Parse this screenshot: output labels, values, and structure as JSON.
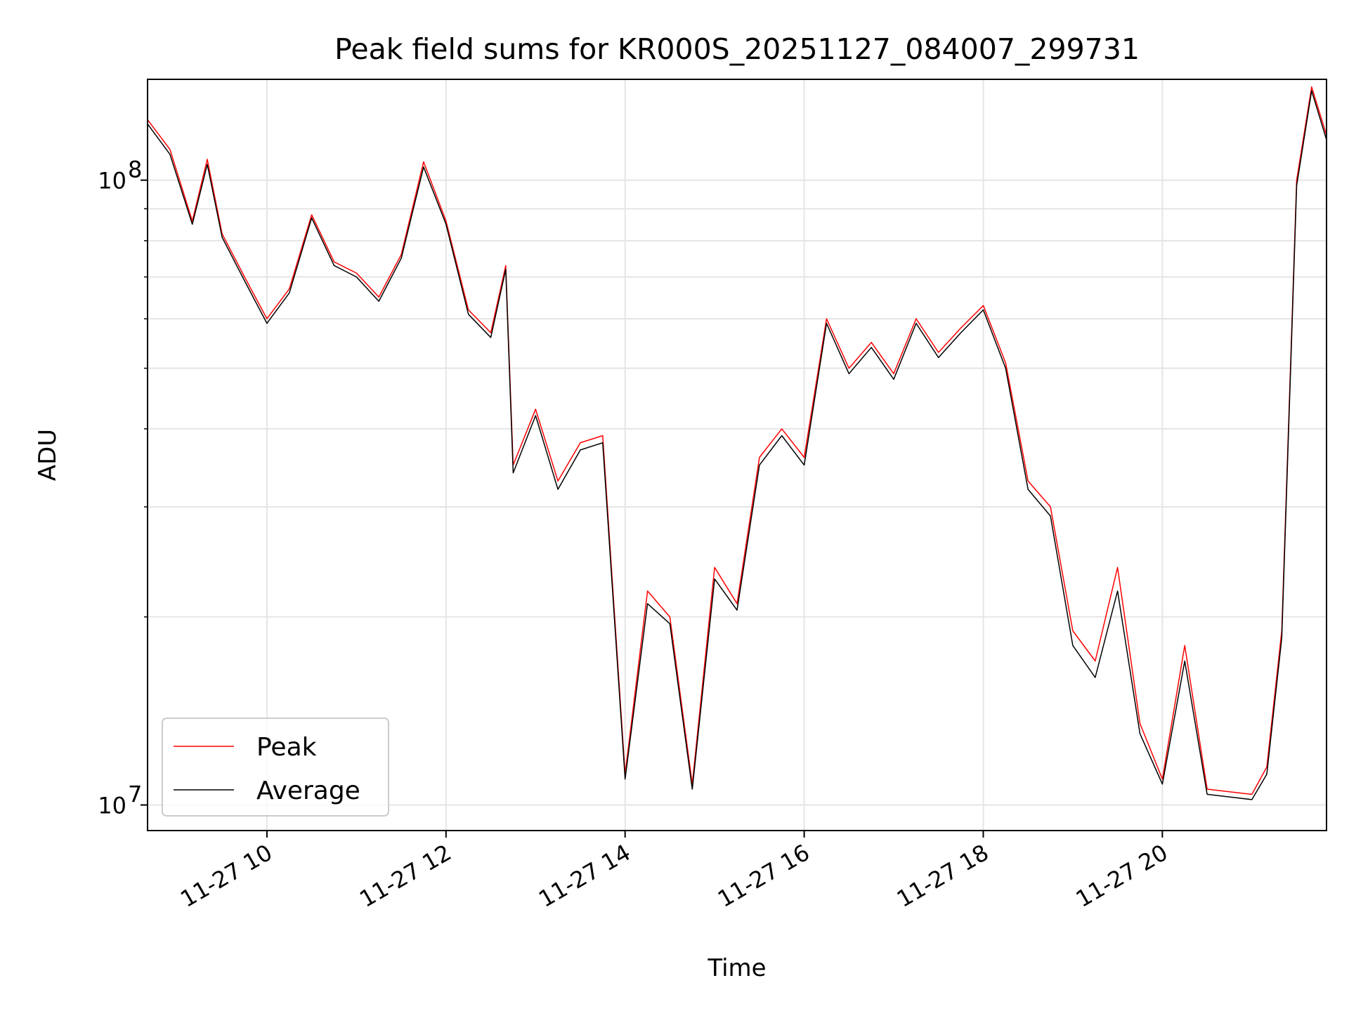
{
  "chart_data": {
    "type": "line",
    "title": "Peak field sums for KR000S_20251127_084007_299731",
    "xlabel": "Time",
    "ylabel": "ADU",
    "xscale": "time",
    "yscale": "log",
    "xlim": [
      "2025-11-27T08:40",
      "2025-11-27T21:50"
    ],
    "ylim": [
      9100000,
      145000000
    ],
    "grid": true,
    "legend": "lower-left",
    "x_ticks": [
      "2025-11-27T10:00",
      "2025-11-27T12:00",
      "2025-11-27T14:00",
      "2025-11-27T16:00",
      "2025-11-27T18:00",
      "2025-11-27T20:00"
    ],
    "x_tick_labels": [
      "11-27 10",
      "11-27 12",
      "11-27 14",
      "11-27 16",
      "11-27 18",
      "11-27 20"
    ],
    "y_ticks": [
      10000000,
      100000000
    ],
    "y_tick_labels": [
      {
        "base": "10",
        "exp": "7"
      },
      {
        "base": "10",
        "exp": "8"
      }
    ],
    "series": [
      {
        "name": "Peak",
        "color": "#ff0000",
        "x": [
          "2025-11-27T08:40",
          "2025-11-27T08:55",
          "2025-11-27T09:10",
          "2025-11-27T09:20",
          "2025-11-27T09:30",
          "2025-11-27T09:45",
          "2025-11-27T10:00",
          "2025-11-27T10:15",
          "2025-11-27T10:30",
          "2025-11-27T10:45",
          "2025-11-27T11:00",
          "2025-11-27T11:15",
          "2025-11-27T11:30",
          "2025-11-27T11:45",
          "2025-11-27T12:00",
          "2025-11-27T12:15",
          "2025-11-27T12:30",
          "2025-11-27T12:40",
          "2025-11-27T12:45",
          "2025-11-27T13:00",
          "2025-11-27T13:15",
          "2025-11-27T13:30",
          "2025-11-27T13:45",
          "2025-11-27T14:00",
          "2025-11-27T14:15",
          "2025-11-27T14:30",
          "2025-11-27T14:45",
          "2025-11-27T15:00",
          "2025-11-27T15:15",
          "2025-11-27T15:30",
          "2025-11-27T15:45",
          "2025-11-27T16:00",
          "2025-11-27T16:15",
          "2025-11-27T16:30",
          "2025-11-27T16:45",
          "2025-11-27T17:00",
          "2025-11-27T17:15",
          "2025-11-27T17:30",
          "2025-11-27T17:45",
          "2025-11-27T18:00",
          "2025-11-27T18:15",
          "2025-11-27T18:30",
          "2025-11-27T18:45",
          "2025-11-27T19:00",
          "2025-11-27T19:15",
          "2025-11-27T19:30",
          "2025-11-27T19:45",
          "2025-11-27T20:00",
          "2025-11-27T20:15",
          "2025-11-27T20:30",
          "2025-11-27T20:45",
          "2025-11-27T21:00",
          "2025-11-27T21:10",
          "2025-11-27T21:20",
          "2025-11-27T21:30",
          "2025-11-27T21:40",
          "2025-11-27T21:50"
        ],
        "values": [
          125000000,
          112000000,
          86000000,
          108000000,
          82000000,
          70000000,
          60000000,
          67000000,
          88000000,
          74000000,
          71000000,
          65000000,
          76000000,
          107000000,
          86000000,
          62000000,
          57000000,
          73000000,
          35000000,
          43000000,
          33000000,
          38000000,
          39000000,
          11200000,
          22000000,
          20000000,
          10800000,
          24000000,
          21000000,
          36000000,
          40000000,
          36000000,
          60000000,
          50000000,
          55000000,
          49000000,
          60000000,
          53000000,
          58000000,
          63000000,
          51000000,
          33000000,
          30000000,
          19000000,
          17000000,
          24000000,
          13500000,
          11000000,
          18000000,
          10600000,
          10500000,
          10400000,
          11500000,
          19000000,
          100000000,
          141000000,
          118000000
        ]
      },
      {
        "name": "Average",
        "color": "#000000",
        "x": [
          "2025-11-27T08:40",
          "2025-11-27T08:55",
          "2025-11-27T09:10",
          "2025-11-27T09:20",
          "2025-11-27T09:30",
          "2025-11-27T09:45",
          "2025-11-27T10:00",
          "2025-11-27T10:15",
          "2025-11-27T10:30",
          "2025-11-27T10:45",
          "2025-11-27T11:00",
          "2025-11-27T11:15",
          "2025-11-27T11:30",
          "2025-11-27T11:45",
          "2025-11-27T12:00",
          "2025-11-27T12:15",
          "2025-11-27T12:30",
          "2025-11-27T12:40",
          "2025-11-27T12:45",
          "2025-11-27T13:00",
          "2025-11-27T13:15",
          "2025-11-27T13:30",
          "2025-11-27T13:45",
          "2025-11-27T14:00",
          "2025-11-27T14:15",
          "2025-11-27T14:30",
          "2025-11-27T14:45",
          "2025-11-27T15:00",
          "2025-11-27T15:15",
          "2025-11-27T15:30",
          "2025-11-27T15:45",
          "2025-11-27T16:00",
          "2025-11-27T16:15",
          "2025-11-27T16:30",
          "2025-11-27T16:45",
          "2025-11-27T17:00",
          "2025-11-27T17:15",
          "2025-11-27T17:30",
          "2025-11-27T17:45",
          "2025-11-27T18:00",
          "2025-11-27T18:15",
          "2025-11-27T18:30",
          "2025-11-27T18:45",
          "2025-11-27T19:00",
          "2025-11-27T19:15",
          "2025-11-27T19:30",
          "2025-11-27T19:45",
          "2025-11-27T20:00",
          "2025-11-27T20:15",
          "2025-11-27T20:30",
          "2025-11-27T20:45",
          "2025-11-27T21:00",
          "2025-11-27T21:10",
          "2025-11-27T21:20",
          "2025-11-27T21:30",
          "2025-11-27T21:40",
          "2025-11-27T21:50"
        ],
        "values": [
          123000000,
          110000000,
          85000000,
          106000000,
          81000000,
          69000000,
          59000000,
          66000000,
          87000000,
          73000000,
          70000000,
          64000000,
          75000000,
          105000000,
          85000000,
          61000000,
          56000000,
          72000000,
          34000000,
          42000000,
          32000000,
          37000000,
          38000000,
          11000000,
          21000000,
          19500000,
          10600000,
          23000000,
          20500000,
          35000000,
          39000000,
          35000000,
          59000000,
          49000000,
          54000000,
          48000000,
          59000000,
          52000000,
          57000000,
          62000000,
          50000000,
          32000000,
          29000000,
          18000000,
          16000000,
          22000000,
          13000000,
          10800000,
          17000000,
          10400000,
          10300000,
          10200000,
          11200000,
          18500000,
          98000000,
          139000000,
          116000000
        ]
      }
    ]
  }
}
